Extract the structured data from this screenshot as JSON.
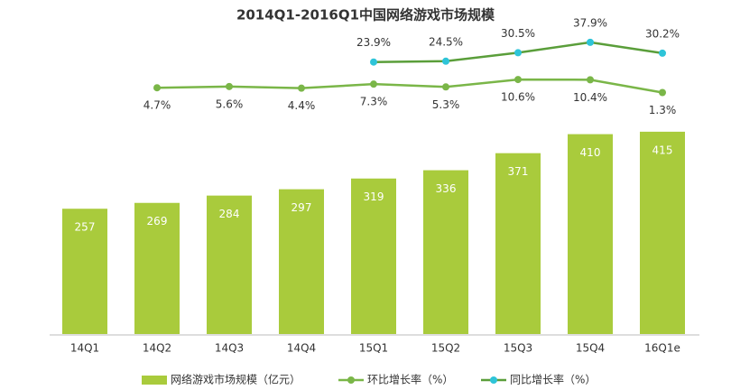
{
  "chart_data": {
    "type": "bar",
    "title": "2014Q1-2016Q1中国网络游戏市场规模",
    "categories": [
      "14Q1",
      "14Q2",
      "14Q3",
      "14Q4",
      "15Q1",
      "15Q2",
      "15Q3",
      "15Q4",
      "16Q1e"
    ],
    "series": [
      {
        "name": "网络游戏市场规模（亿元）",
        "type": "bar",
        "color": "#a9cb3c",
        "values": [
          257,
          269,
          284,
          297,
          319,
          336,
          371,
          410,
          415
        ]
      },
      {
        "name": "环比增长率（%）",
        "type": "line",
        "color": "#7ab648",
        "marker_color": "#7ab648",
        "values": [
          null,
          4.7,
          5.6,
          4.4,
          7.3,
          5.3,
          10.6,
          10.4,
          1.3
        ],
        "value_labels": [
          null,
          "4.7%",
          "5.6%",
          "4.4%",
          "7.3%",
          "5.3%",
          "10.6%",
          "10.4%",
          "1.3%"
        ]
      },
      {
        "name": "同比增长率（%）",
        "type": "line",
        "color": "#5a9e3a",
        "marker_color": "#2ec4d8",
        "values": [
          null,
          null,
          null,
          null,
          23.9,
          24.5,
          30.5,
          37.9,
          30.2
        ],
        "value_labels": [
          null,
          null,
          null,
          null,
          "23.9%",
          "24.5%",
          "30.5%",
          "37.9%",
          "30.2%"
        ]
      }
    ]
  }
}
